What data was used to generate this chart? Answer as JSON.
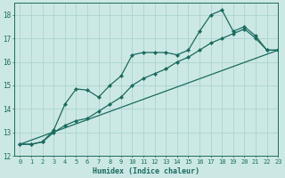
{
  "xlabel": "Humidex (Indice chaleur)",
  "background_color": "#cce8e4",
  "grid_color": "#aad4d0",
  "line_color": "#1a6b60",
  "x_values": [
    0,
    1,
    2,
    3,
    4,
    5,
    6,
    7,
    8,
    9,
    10,
    11,
    12,
    13,
    14,
    15,
    16,
    17,
    18,
    19,
    20,
    21,
    22,
    23
  ],
  "line1": [
    12.5,
    12.5,
    12.6,
    13.1,
    14.2,
    14.85,
    14.8,
    14.5,
    15.0,
    15.4,
    16.3,
    16.4,
    16.4,
    16.4,
    16.3,
    16.5,
    17.3,
    18.0,
    18.2,
    17.3,
    17.5,
    17.1,
    16.5,
    16.5
  ],
  "line2": [
    12.5,
    12.5,
    12.6,
    13.0,
    13.3,
    13.5,
    13.6,
    13.9,
    14.2,
    14.5,
    15.0,
    15.3,
    15.5,
    15.7,
    16.0,
    16.2,
    16.5,
    16.8,
    17.0,
    17.2,
    17.4,
    17.0,
    16.5,
    16.5
  ],
  "line3_x": [
    0,
    23
  ],
  "line3_y": [
    12.5,
    16.5
  ],
  "ylim": [
    12,
    18.5
  ],
  "xlim": [
    -0.5,
    23
  ],
  "yticks": [
    12,
    13,
    14,
    15,
    16,
    17,
    18
  ],
  "xticks": [
    0,
    1,
    2,
    3,
    4,
    5,
    6,
    7,
    8,
    9,
    10,
    11,
    12,
    13,
    14,
    15,
    16,
    17,
    18,
    19,
    20,
    21,
    22,
    23
  ],
  "xlabel_fontsize": 6.0,
  "tick_fontsize": 5.0,
  "marker_size": 2.5
}
